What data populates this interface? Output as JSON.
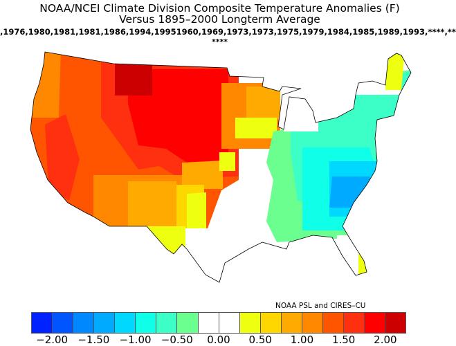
{
  "header": {
    "title": "NOAA/NCEI Climate Division Composite Temperature Anomalies (F)",
    "subtitle": "Versus 1895–2000 Longterm Average",
    "years": ",1976,1980,1981,1981,1986,1994,19951960,1969,1973,1973,1975,1979,1984,1985,1989,1993,****,**",
    "years_cont": "****"
  },
  "credit": "NOAA PSL and CIRES–CU",
  "legend": {
    "colors": [
      "#0022ff",
      "#0055ff",
      "#0088ff",
      "#00aaff",
      "#00d8ff",
      "#10ffe8",
      "#3cffc8",
      "#6bff8f",
      "#ffffff",
      "#ffffff",
      "#eeff10",
      "#ffd700",
      "#ffaa00",
      "#ff8800",
      "#ff5500",
      "#ff3010",
      "#ff0000",
      "#cc0000"
    ],
    "labels": [
      "−2.00",
      "−1.50",
      "−1.00",
      "−0.50",
      "0.00",
      "0.50",
      "1.00",
      "1.50",
      "2.00"
    ]
  }
}
